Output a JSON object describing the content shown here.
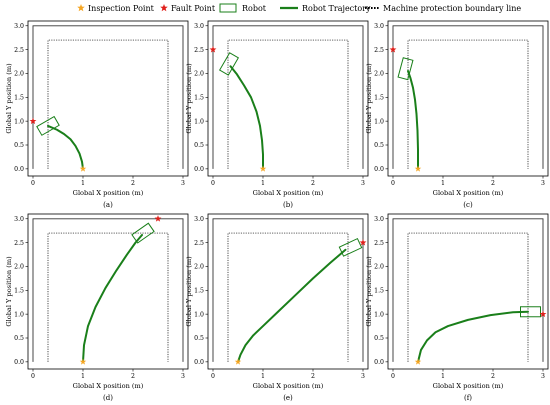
{
  "legend": {
    "items": [
      {
        "label": "Inspection Point",
        "kind": "star",
        "color": "#f5a623"
      },
      {
        "label": "Fault Point",
        "kind": "star",
        "color": "#e0201b"
      },
      {
        "label": "Robot",
        "kind": "rect",
        "color": "#1a7f1a"
      },
      {
        "label": "Robot Trajectory",
        "kind": "line",
        "color": "#1a7f1a"
      },
      {
        "label": "Machine protection boundary line",
        "kind": "dots",
        "color": "#000000"
      }
    ]
  },
  "chart_data": [
    {
      "type": "line",
      "caption": "(a)",
      "xlabel": "Global X position (m)",
      "ylabel": "Global Y position (m)",
      "xlim": [
        -0.1,
        3.1
      ],
      "ylim": [
        -0.15,
        3.1
      ],
      "xticks": [
        0,
        1,
        2,
        3
      ],
      "yticks": [
        0.0,
        0.5,
        1.0,
        1.5,
        2.0,
        2.5,
        3.0
      ],
      "outer_boundary": {
        "x": [
          0,
          3
        ],
        "y": [
          0,
          3
        ]
      },
      "protection_boundary": {
        "x": [
          0.3,
          2.7
        ],
        "y": [
          0,
          2.7
        ]
      },
      "inspection_point": {
        "x": 1.0,
        "y": 0.0
      },
      "fault_point": {
        "x": 0.0,
        "y": 1.0
      },
      "robot": {
        "x": 0.3,
        "y": 0.9,
        "angle": -30
      },
      "trajectory": {
        "x": [
          1.0,
          0.98,
          0.93,
          0.85,
          0.75,
          0.62,
          0.48,
          0.3
        ],
        "y": [
          0.0,
          0.15,
          0.32,
          0.48,
          0.62,
          0.73,
          0.82,
          0.9
        ]
      }
    },
    {
      "type": "line",
      "caption": "(b)",
      "xlabel": "Global X position (m)",
      "ylabel": "Global Y position (m)",
      "xlim": [
        -0.1,
        3.1
      ],
      "ylim": [
        -0.15,
        3.1
      ],
      "xticks": [
        0,
        1,
        2,
        3
      ],
      "yticks": [
        0.0,
        0.5,
        1.0,
        1.5,
        2.0,
        2.5,
        3.0
      ],
      "outer_boundary": {
        "x": [
          0,
          3
        ],
        "y": [
          0,
          3
        ]
      },
      "protection_boundary": {
        "x": [
          0.3,
          2.7
        ],
        "y": [
          0,
          2.7
        ]
      },
      "inspection_point": {
        "x": 1.0,
        "y": 0.0
      },
      "fault_point": {
        "x": 0.0,
        "y": 2.5
      },
      "robot": {
        "x": 0.32,
        "y": 2.2,
        "angle": -60
      },
      "trajectory": {
        "x": [
          1.0,
          1.0,
          0.98,
          0.94,
          0.87,
          0.76,
          0.62,
          0.48,
          0.35
        ],
        "y": [
          0.0,
          0.3,
          0.6,
          0.9,
          1.2,
          1.5,
          1.75,
          1.98,
          2.15
        ]
      }
    },
    {
      "type": "line",
      "caption": "(c)",
      "xlabel": "Global X position (m)",
      "ylabel": "Global Y position (m)",
      "xlim": [
        -0.1,
        3.1
      ],
      "ylim": [
        -0.15,
        3.1
      ],
      "xticks": [
        0,
        1,
        2,
        3
      ],
      "yticks": [
        0.0,
        0.5,
        1.0,
        1.5,
        2.0,
        2.5,
        3.0
      ],
      "outer_boundary": {
        "x": [
          0,
          3
        ],
        "y": [
          0,
          3
        ]
      },
      "protection_boundary": {
        "x": [
          0.3,
          2.7
        ],
        "y": [
          0,
          2.7
        ]
      },
      "inspection_point": {
        "x": 0.5,
        "y": 0.0
      },
      "fault_point": {
        "x": 0.0,
        "y": 2.5
      },
      "robot": {
        "x": 0.25,
        "y": 2.1,
        "angle": -75
      },
      "trajectory": {
        "x": [
          0.5,
          0.5,
          0.49,
          0.47,
          0.44,
          0.4,
          0.35,
          0.3
        ],
        "y": [
          0.0,
          0.4,
          0.8,
          1.15,
          1.45,
          1.7,
          1.9,
          2.05
        ]
      }
    },
    {
      "type": "line",
      "caption": "(d)",
      "xlabel": "Global X position (m)",
      "ylabel": "Global Y position (m)",
      "xlim": [
        -0.1,
        3.1
      ],
      "ylim": [
        -0.15,
        3.1
      ],
      "xticks": [
        0,
        1,
        2,
        3
      ],
      "yticks": [
        0.0,
        0.5,
        1.0,
        1.5,
        2.0,
        2.5,
        3.0
      ],
      "outer_boundary": {
        "x": [
          0,
          3
        ],
        "y": [
          0,
          3
        ]
      },
      "protection_boundary": {
        "x": [
          0.3,
          2.7
        ],
        "y": [
          0,
          2.7
        ]
      },
      "inspection_point": {
        "x": 1.0,
        "y": 0.0
      },
      "fault_point": {
        "x": 2.5,
        "y": 3.0
      },
      "robot": {
        "x": 2.2,
        "y": 2.7,
        "angle": -35
      },
      "trajectory": {
        "x": [
          1.0,
          1.02,
          1.1,
          1.25,
          1.45,
          1.67,
          1.88,
          2.05,
          2.18
        ],
        "y": [
          0.0,
          0.35,
          0.75,
          1.15,
          1.55,
          1.92,
          2.25,
          2.5,
          2.66
        ]
      }
    },
    {
      "type": "line",
      "caption": "(e)",
      "xlabel": "Global X position (m)",
      "ylabel": "Global Y position (m)",
      "xlim": [
        -0.1,
        3.1
      ],
      "ylim": [
        -0.15,
        3.1
      ],
      "xticks": [
        0,
        1,
        2,
        3
      ],
      "yticks": [
        0.0,
        0.5,
        1.0,
        1.5,
        2.0,
        2.5,
        3.0
      ],
      "outer_boundary": {
        "x": [
          0,
          3
        ],
        "y": [
          0,
          3
        ]
      },
      "protection_boundary": {
        "x": [
          0.3,
          2.7
        ],
        "y": [
          0,
          2.7
        ]
      },
      "inspection_point": {
        "x": 0.5,
        "y": 0.0
      },
      "fault_point": {
        "x": 3.0,
        "y": 2.5
      },
      "robot": {
        "x": 2.75,
        "y": 2.4,
        "angle": -25
      },
      "trajectory": {
        "x": [
          0.5,
          0.55,
          0.65,
          0.8,
          1.0,
          1.3,
          1.65,
          2.0,
          2.35,
          2.65
        ],
        "y": [
          0.0,
          0.15,
          0.35,
          0.55,
          0.75,
          1.05,
          1.4,
          1.75,
          2.08,
          2.35
        ]
      }
    },
    {
      "type": "line",
      "caption": "(f)",
      "xlabel": "Global X position (m)",
      "ylabel": "Global Y position (m)",
      "xlim": [
        -0.1,
        3.1
      ],
      "ylim": [
        -0.15,
        3.1
      ],
      "xticks": [
        0,
        1,
        2,
        3
      ],
      "yticks": [
        0.0,
        0.5,
        1.0,
        1.5,
        2.0,
        2.5,
        3.0
      ],
      "outer_boundary": {
        "x": [
          0,
          3
        ],
        "y": [
          0,
          3
        ]
      },
      "protection_boundary": {
        "x": [
          0.3,
          2.7
        ],
        "y": [
          0,
          2.7
        ]
      },
      "inspection_point": {
        "x": 0.5,
        "y": 0.0
      },
      "fault_point": {
        "x": 3.0,
        "y": 1.0
      },
      "robot": {
        "x": 2.75,
        "y": 1.05,
        "angle": 0
      },
      "trajectory": {
        "x": [
          0.5,
          0.56,
          0.68,
          0.85,
          1.1,
          1.5,
          1.95,
          2.4,
          2.7
        ],
        "y": [
          0.0,
          0.25,
          0.45,
          0.62,
          0.75,
          0.88,
          0.98,
          1.04,
          1.05
        ]
      }
    }
  ]
}
